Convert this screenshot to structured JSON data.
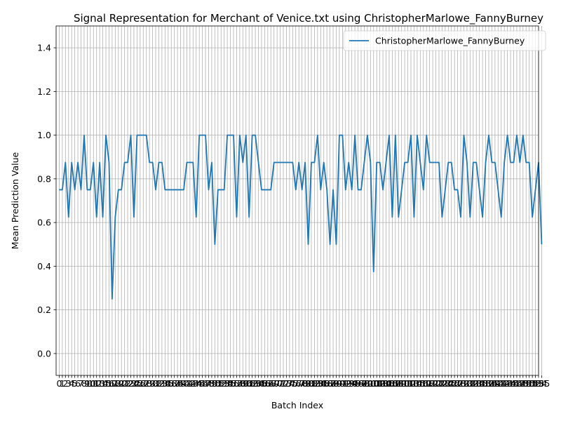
{
  "chart_data": {
    "type": "line",
    "title": "Signal Representation for Merchant of Venice.txt using ChristopherMarlowe_FannyBurney",
    "xlabel": "Batch Index",
    "ylabel": "Mean Prediction Value",
    "ylim": [
      -0.1,
      1.5
    ],
    "xlim": [
      -1,
      154
    ],
    "yticks": [
      "0.0",
      "0.2",
      "0.4",
      "0.6",
      "0.8",
      "1.0",
      "1.2",
      "1.4"
    ],
    "grid": true,
    "legend_position": "top-right",
    "series": [
      {
        "name": "ChristopherMarlowe_FannyBurney",
        "color": "#1f77b4",
        "values": [
          0.75,
          0.75,
          0.875,
          0.625,
          0.875,
          0.75,
          0.875,
          0.75,
          1.0,
          0.75,
          0.75,
          0.875,
          0.625,
          0.875,
          0.625,
          1.0,
          0.875,
          0.25,
          0.625,
          0.75,
          0.75,
          0.875,
          0.875,
          1.0,
          0.625,
          1.0,
          1.0,
          1.0,
          1.0,
          0.875,
          0.875,
          0.75,
          0.875,
          0.875,
          0.75,
          0.75,
          0.75,
          0.75,
          0.75,
          0.75,
          0.75,
          0.875,
          0.875,
          0.875,
          0.625,
          1.0,
          1.0,
          1.0,
          0.75,
          0.875,
          0.5,
          0.75,
          0.75,
          0.75,
          1.0,
          1.0,
          1.0,
          0.625,
          1.0,
          0.875,
          1.0,
          0.625,
          1.0,
          1.0,
          0.875,
          0.75,
          0.75,
          0.75,
          0.75,
          0.875,
          0.875,
          0.875,
          0.875,
          0.875,
          0.875,
          0.875,
          0.75,
          0.875,
          0.75,
          0.875,
          0.5,
          0.875,
          0.875,
          1.0,
          0.75,
          0.875,
          0.75,
          0.5,
          0.75,
          0.5,
          1.0,
          1.0,
          0.75,
          0.875,
          0.75,
          1.0,
          0.75,
          0.75,
          0.875,
          1.0,
          0.875,
          0.375,
          0.875,
          0.875,
          0.75,
          0.875,
          1.0,
          0.625,
          1.0,
          0.625,
          0.75,
          0.875,
          0.875,
          1.0,
          0.625,
          1.0,
          0.875,
          0.75,
          1.0,
          0.875,
          0.875,
          0.875,
          0.875,
          0.625,
          0.75,
          0.875,
          0.875,
          0.75,
          0.75,
          0.625,
          1.0,
          0.875,
          0.625,
          0.875,
          0.875,
          0.75,
          0.625,
          0.875,
          1.0,
          0.875,
          0.875,
          0.75,
          0.625,
          0.875,
          1.0,
          0.875,
          0.875,
          1.0,
          0.875,
          1.0,
          0.875,
          0.875,
          0.625,
          0.75,
          0.875,
          0.5
        ]
      }
    ]
  }
}
